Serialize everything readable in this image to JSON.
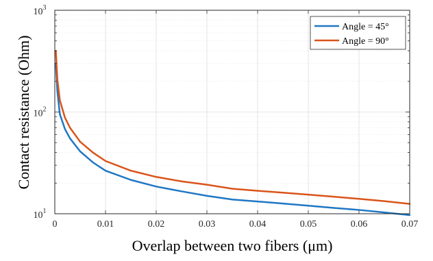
{
  "chart_data": {
    "type": "line",
    "title": "",
    "xlabel": "Overlap between two fibers (μm)",
    "ylabel": "Contact resistance (Ohm)",
    "xlim": [
      0,
      0.07
    ],
    "ylim": [
      10,
      1000
    ],
    "y_scale": "log",
    "grid": true,
    "legend_position": "top-right",
    "x_ticks": [
      0,
      0.01,
      0.02,
      0.03,
      0.04,
      0.05,
      0.06,
      0.07
    ],
    "x_tick_labels": [
      "0",
      "0.01",
      "0.02",
      "0.03",
      "0.04",
      "0.05",
      "0.06",
      "0.07"
    ],
    "y_ticks": [
      10,
      100,
      1000
    ],
    "y_tick_labels": [
      {
        "base": "10",
        "exp": "1"
      },
      {
        "base": "10",
        "exp": "2"
      },
      {
        "base": "10",
        "exp": "3"
      }
    ],
    "series": [
      {
        "name": "Angle = 45°",
        "color": "#1f77c4",
        "x": [
          0.0002,
          0.0005,
          0.001,
          0.002,
          0.003,
          0.005,
          0.0075,
          0.01,
          0.015,
          0.02,
          0.025,
          0.03,
          0.035,
          0.04,
          0.045,
          0.05,
          0.055,
          0.06,
          0.065,
          0.07
        ],
        "y": [
          300,
          160,
          95,
          68,
          55,
          41,
          32,
          26.5,
          21.5,
          18.5,
          16.6,
          15.0,
          13.8,
          13.2,
          12.6,
          12.0,
          11.4,
          10.9,
          10.3,
          9.7
        ]
      },
      {
        "name": "Angle = 90°",
        "color": "#d9541a",
        "x": [
          0.0002,
          0.0005,
          0.001,
          0.002,
          0.003,
          0.005,
          0.0075,
          0.01,
          0.015,
          0.02,
          0.025,
          0.03,
          0.035,
          0.04,
          0.045,
          0.05,
          0.055,
          0.06,
          0.065,
          0.07
        ],
        "y": [
          400,
          210,
          130,
          88,
          70,
          51,
          40,
          33,
          26.5,
          23,
          20.8,
          19.3,
          17.6,
          16.8,
          16.1,
          15.4,
          14.7,
          14.0,
          13.3,
          12.5
        ]
      }
    ]
  }
}
